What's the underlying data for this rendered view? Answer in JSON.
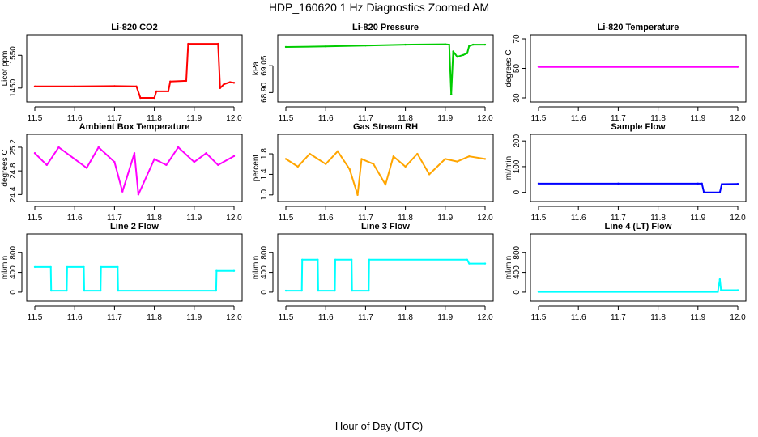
{
  "figure": {
    "title": "HDP_160620  1 Hz Diagnostics Zoomed AM",
    "xlabel": "Hour of Day (UTC)"
  },
  "chart_data": [
    {
      "type": "line",
      "title": "Li-820 CO2",
      "ylabel": "Licor ppm",
      "color": "#ff0000",
      "xlim": [
        11.5,
        12.0
      ],
      "ylim": [
        1420,
        1600
      ],
      "x_ticks": [
        "11.5",
        "11.6",
        "11.7",
        "11.8",
        "11.9",
        "12.0"
      ],
      "y_ticks": [
        {
          "value": 1450,
          "label": "1450"
        },
        {
          "value": 1550,
          "label": "1550"
        }
      ],
      "x": [
        11.5,
        11.6,
        11.7,
        11.755,
        11.765,
        11.8,
        11.805,
        11.835,
        11.84,
        11.88,
        11.885,
        11.96,
        11.965,
        11.975,
        11.99,
        12.0
      ],
      "values": [
        1455,
        1455,
        1456,
        1455,
        1420,
        1420,
        1440,
        1440,
        1470,
        1472,
        1585,
        1585,
        1450,
        1462,
        1468,
        1466
      ]
    },
    {
      "type": "line",
      "title": "Li-820 Pressure",
      "ylabel": "kPa",
      "color": "#00cc00",
      "xlim": [
        11.5,
        12.0
      ],
      "ylim": [
        68.87,
        69.2
      ],
      "x_ticks": [
        "11.5",
        "11.6",
        "11.7",
        "11.8",
        "11.9",
        "12.0"
      ],
      "y_ticks": [
        {
          "value": 68.9,
          "label": "68.90"
        },
        {
          "value": 69.05,
          "label": "69.05"
        }
      ],
      "x": [
        11.5,
        11.6,
        11.7,
        11.8,
        11.9,
        11.91,
        11.915,
        11.92,
        11.93,
        11.945,
        11.955,
        11.96,
        11.97,
        12.0
      ],
      "values": [
        69.155,
        69.158,
        69.163,
        69.168,
        69.17,
        69.168,
        68.89,
        69.13,
        69.1,
        69.11,
        69.12,
        69.16,
        69.168,
        69.168
      ]
    },
    {
      "type": "line",
      "title": "Li-820 Temperature",
      "ylabel": "degrees C",
      "color": "#ff00ff",
      "xlim": [
        11.5,
        12.0
      ],
      "ylim": [
        30,
        70
      ],
      "x_ticks": [
        "11.5",
        "11.6",
        "11.7",
        "11.8",
        "11.9",
        "12.0"
      ],
      "y_ticks": [
        {
          "value": 30,
          "label": "30"
        },
        {
          "value": 50,
          "label": "50"
        },
        {
          "value": 70,
          "label": "70"
        }
      ],
      "x": [
        11.5,
        12.0
      ],
      "values": [
        51,
        51
      ]
    },
    {
      "type": "line",
      "title": "Ambient Box Temperature",
      "ylabel": "degrees C",
      "color": "#ff00ff",
      "xlim": [
        11.5,
        12.0
      ],
      "ylim": [
        24.35,
        25.35
      ],
      "x_ticks": [
        "11.5",
        "11.6",
        "11.7",
        "11.8",
        "11.9",
        "12.0"
      ],
      "y_ticks": [
        {
          "value": 24.4,
          "label": "24.4"
        },
        {
          "value": 24.8,
          "label": "24.8"
        },
        {
          "value": 25.2,
          "label": "25.2"
        }
      ],
      "x": [
        11.5,
        11.53,
        11.56,
        11.6,
        11.63,
        11.66,
        11.7,
        11.72,
        11.75,
        11.76,
        11.8,
        11.83,
        11.86,
        11.9,
        11.93,
        11.96,
        12.0
      ],
      "values": [
        25.1,
        24.9,
        25.2,
        25.0,
        24.85,
        25.2,
        24.95,
        24.45,
        25.1,
        24.4,
        25.0,
        24.9,
        25.2,
        24.95,
        25.1,
        24.9,
        25.05
      ]
    },
    {
      "type": "line",
      "title": "Gas Stream RH",
      "ylabel": "percent",
      "color": "#ffa500",
      "xlim": [
        11.5,
        12.0
      ],
      "ylim": [
        0.95,
        2.1
      ],
      "x_ticks": [
        "11.5",
        "11.6",
        "11.7",
        "11.8",
        "11.9",
        "12.0"
      ],
      "y_ticks": [
        {
          "value": 1.0,
          "label": "1.0"
        },
        {
          "value": 1.4,
          "label": "1.4"
        },
        {
          "value": 1.8,
          "label": "1.8"
        }
      ],
      "x": [
        11.5,
        11.53,
        11.56,
        11.6,
        11.63,
        11.66,
        11.68,
        11.69,
        11.72,
        11.75,
        11.77,
        11.8,
        11.83,
        11.86,
        11.9,
        11.93,
        11.96,
        12.0
      ],
      "values": [
        1.7,
        1.55,
        1.8,
        1.6,
        1.85,
        1.5,
        1.0,
        1.7,
        1.6,
        1.2,
        1.75,
        1.55,
        1.8,
        1.4,
        1.7,
        1.65,
        1.75,
        1.7
      ]
    },
    {
      "type": "line",
      "title": "Sample Flow",
      "ylabel": "ml/min",
      "color": "#0000ff",
      "xlim": [
        11.5,
        12.0
      ],
      "ylim": [
        -20,
        210
      ],
      "x_ticks": [
        "11.5",
        "11.6",
        "11.7",
        "11.8",
        "11.9",
        "12.0"
      ],
      "y_ticks": [
        {
          "value": 0,
          "label": "0"
        },
        {
          "value": 100,
          "label": "100"
        },
        {
          "value": 200,
          "label": "200"
        }
      ],
      "x": [
        11.5,
        11.7,
        11.9,
        11.91,
        11.915,
        11.955,
        11.96,
        12.0
      ],
      "values": [
        34,
        34,
        34,
        34,
        0,
        0,
        32,
        33
      ]
    },
    {
      "type": "line",
      "title": "Line 2 Flow",
      "ylabel": "ml/min",
      "color": "#00ffff",
      "xlim": [
        11.5,
        12.0
      ],
      "ylim": [
        -100,
        1100
      ],
      "x_ticks": [
        "11.5",
        "11.6",
        "11.7",
        "11.8",
        "11.9",
        "12.0"
      ],
      "y_ticks": [
        {
          "value": 0,
          "label": "0"
        },
        {
          "value": 400,
          "label": "400"
        },
        {
          "value": 800,
          "label": "800"
        }
      ],
      "x": [
        11.5,
        11.54,
        11.541,
        11.58,
        11.581,
        11.623,
        11.624,
        11.665,
        11.666,
        11.708,
        11.709,
        11.955,
        11.956,
        12.0
      ],
      "values": [
        510,
        510,
        30,
        30,
        510,
        510,
        30,
        30,
        510,
        510,
        30,
        30,
        430,
        430
      ]
    },
    {
      "type": "line",
      "title": "Line 3 Flow",
      "ylabel": "ml/min",
      "color": "#00ffff",
      "xlim": [
        11.5,
        12.0
      ],
      "ylim": [
        -100,
        1100
      ],
      "x_ticks": [
        "11.5",
        "11.6",
        "11.7",
        "11.8",
        "11.9",
        "12.0"
      ],
      "y_ticks": [
        {
          "value": 0,
          "label": "0"
        },
        {
          "value": 400,
          "label": "400"
        },
        {
          "value": 800,
          "label": "800"
        }
      ],
      "x": [
        11.5,
        11.54,
        11.541,
        11.58,
        11.581,
        11.623,
        11.624,
        11.665,
        11.666,
        11.708,
        11.709,
        11.955,
        11.96,
        12.0
      ],
      "values": [
        30,
        30,
        660,
        660,
        30,
        30,
        660,
        660,
        30,
        30,
        660,
        660,
        580,
        580
      ]
    },
    {
      "type": "line",
      "title": "Line 4 (LT) Flow",
      "ylabel": "ml/min",
      "color": "#00ffff",
      "xlim": [
        11.5,
        12.0
      ],
      "ylim": [
        -100,
        1100
      ],
      "x_ticks": [
        "11.5",
        "11.6",
        "11.7",
        "11.8",
        "11.9",
        "12.0"
      ],
      "y_ticks": [
        {
          "value": 0,
          "label": "0"
        },
        {
          "value": 400,
          "label": "400"
        },
        {
          "value": 800,
          "label": "800"
        }
      ],
      "x": [
        11.5,
        11.95,
        11.955,
        11.958,
        11.96,
        12.0
      ],
      "values": [
        5,
        5,
        260,
        40,
        40,
        40
      ]
    }
  ]
}
